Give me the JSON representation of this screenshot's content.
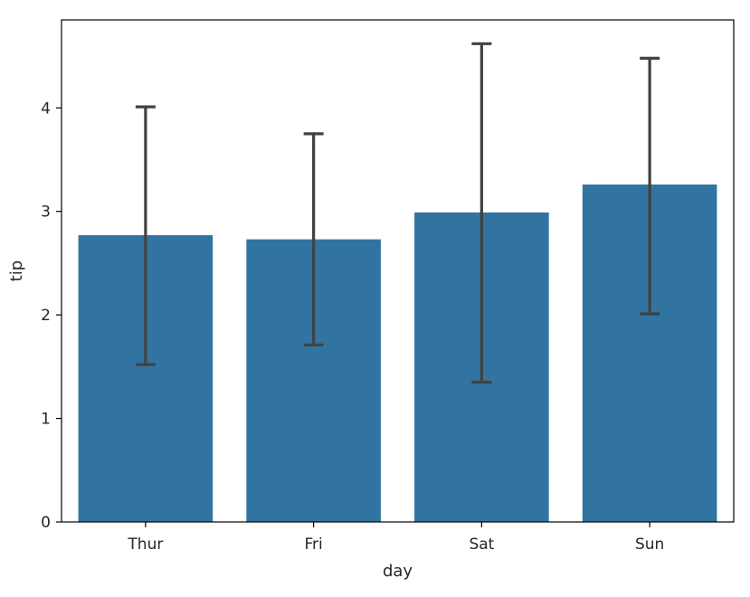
{
  "chart_data": {
    "type": "bar",
    "title": "",
    "xlabel": "day",
    "ylabel": "tip",
    "categories": [
      "Thur",
      "Fri",
      "Sat",
      "Sun"
    ],
    "values": [
      2.77,
      2.73,
      2.99,
      3.26
    ],
    "error_bars": [
      {
        "low": 1.52,
        "high": 4.01
      },
      {
        "low": 1.71,
        "high": 3.75
      },
      {
        "low": 1.35,
        "high": 4.62
      },
      {
        "low": 2.01,
        "high": 4.48
      }
    ],
    "ylim": [
      0,
      4.85
    ],
    "yticks": [
      0,
      1,
      2,
      3,
      4
    ],
    "ytick_labels": [
      "0",
      "1",
      "2",
      "3",
      "4"
    ],
    "grid": false,
    "legend": "none",
    "bar_color": "#3274a1",
    "errorbar_color": "#424242"
  }
}
